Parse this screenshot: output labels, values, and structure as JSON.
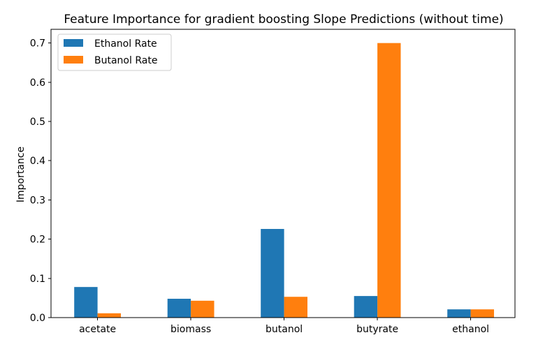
{
  "chart_data": {
    "type": "bar",
    "title": "Feature Importance for gradient boosting Slope Predictions (without time)",
    "xlabel": "",
    "ylabel": "Importance",
    "categories": [
      "acetate",
      "biomass",
      "butanol",
      "butyrate",
      "ethanol"
    ],
    "series": [
      {
        "name": "Ethanol Rate",
        "color": "#1f77b4",
        "values": [
          0.078,
          0.048,
          0.226,
          0.055,
          0.021
        ]
      },
      {
        "name": "Butanol Rate",
        "color": "#ff7f0e",
        "values": [
          0.011,
          0.043,
          0.053,
          0.7,
          0.021
        ]
      }
    ],
    "ylim": [
      0,
      0.735
    ],
    "yticks": [
      "0.0",
      "0.1",
      "0.2",
      "0.3",
      "0.4",
      "0.5",
      "0.6",
      "0.7"
    ],
    "grid": false,
    "legend_position": "top-left"
  }
}
